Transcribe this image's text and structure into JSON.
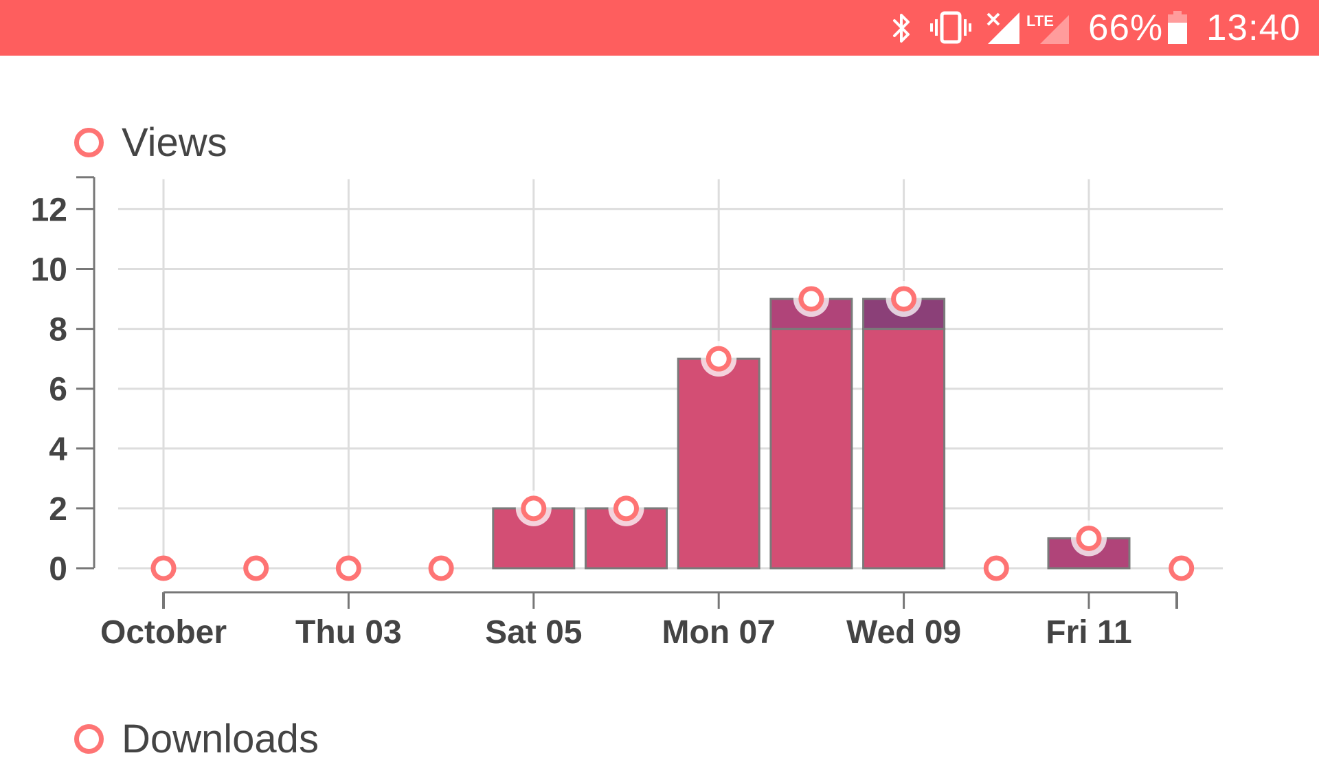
{
  "status_bar": {
    "battery_percent": "66%",
    "time": "13:40",
    "network_type": "LTE",
    "icons": [
      "bluetooth-icon",
      "vibrate-icon",
      "signal-no-service-icon",
      "lte-signal-icon",
      "battery-icon"
    ],
    "color": "#fe5e5e"
  },
  "legend": {
    "views_label": "Views",
    "downloads_label": "Downloads"
  },
  "chart_data": {
    "type": "bar",
    "series": [
      {
        "name": "Views",
        "marker": "circle",
        "color": "#fe7474",
        "x_index": [
          0,
          1,
          2,
          3,
          4,
          5,
          6,
          7,
          8,
          9,
          10,
          11
        ],
        "values": [
          0,
          0,
          0,
          0,
          2,
          2,
          7,
          9,
          9,
          0,
          1,
          0
        ]
      }
    ],
    "bars": [
      {
        "x_index": 4,
        "value": 2,
        "stack": [
          2
        ]
      },
      {
        "x_index": 5,
        "value": 2,
        "stack": [
          2
        ]
      },
      {
        "x_index": 6,
        "value": 7,
        "stack": [
          7
        ]
      },
      {
        "x_index": 7,
        "value": 9,
        "stack": [
          8,
          1
        ]
      },
      {
        "x_index": 8,
        "value": 9,
        "stack": [
          8,
          1
        ]
      },
      {
        "x_index": 10,
        "value": 1,
        "stack": [
          1
        ]
      }
    ],
    "bar_colors": [
      "#d34e74",
      "#b04479",
      "#8b4078"
    ],
    "x_tick_labels": [
      {
        "index": 0,
        "label": "October"
      },
      {
        "index": 2,
        "label": "Thu 03"
      },
      {
        "index": 4,
        "label": "Sat 05"
      },
      {
        "index": 6,
        "label": "Mon 07"
      },
      {
        "index": 8,
        "label": "Wed 09"
      },
      {
        "index": 10,
        "label": "Fri 11"
      }
    ],
    "y_ticks": [
      0,
      2,
      4,
      6,
      8,
      10,
      12
    ],
    "ylim": [
      0,
      13
    ],
    "x_count": 12,
    "grid": true
  }
}
